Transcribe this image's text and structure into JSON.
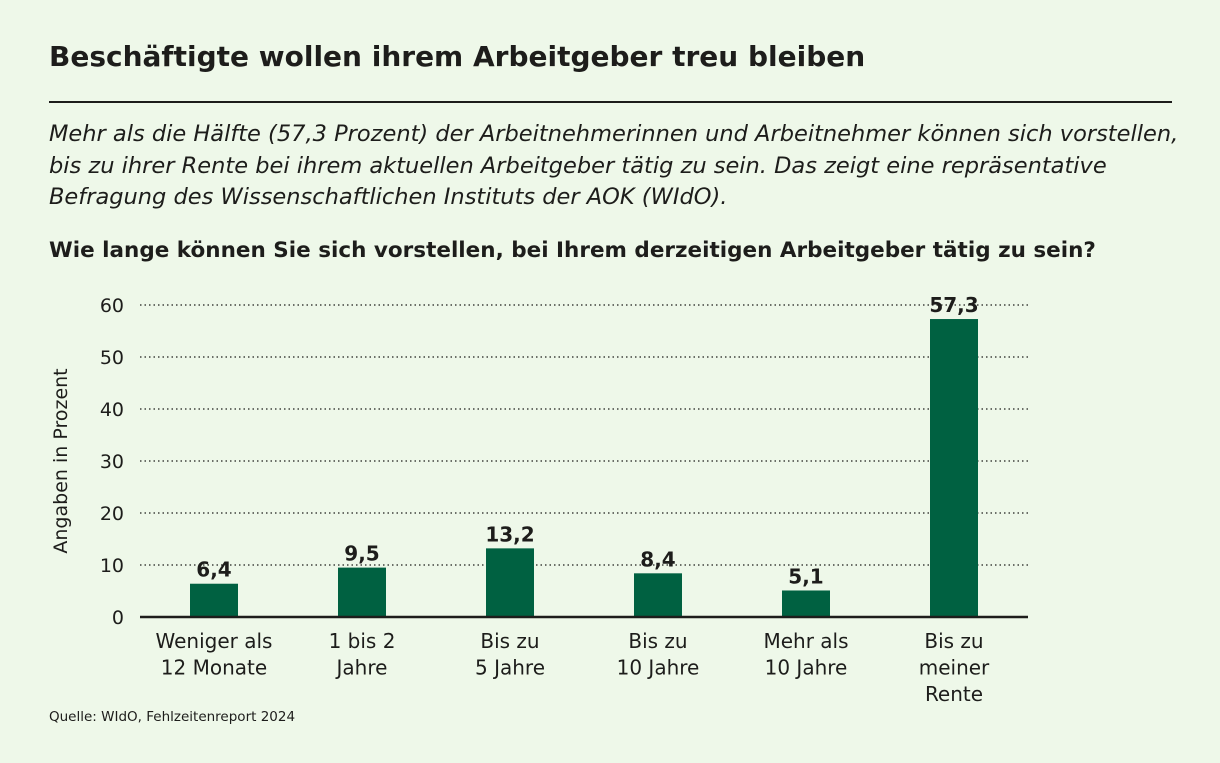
{
  "header": {
    "title": "Beschäftigte wollen ihrem Arbeitgeber treu bleiben",
    "subtitle": "Mehr als die Hälfte (57,3 Prozent) der Arbeitnehmerinnen und Arbeitnehmer können sich vorstellen, bis zu ihrer Rente bei ihrem aktuellen Arbeitgeber tätig zu sein. Das zeigt eine repräsentative Befragung des Wissenschaftlichen Instituts der AOK (WIdO).",
    "question": "Wie lange können Sie sich vorstellen, bei Ihrem derzeitigen Arbeitgeber tätig zu sein?"
  },
  "source": "Quelle: WIdO, Fehlzeitenreport 2024",
  "colors": {
    "bar": "#006141",
    "background": "#eef8e9",
    "text": "#1d1d1b"
  },
  "chart_data": {
    "type": "bar",
    "categories": [
      [
        "Weniger als",
        "12 Monate"
      ],
      [
        "1 bis 2",
        "Jahre"
      ],
      [
        "Bis zu",
        "5 Jahre"
      ],
      [
        "Bis zu",
        "10 Jahre"
      ],
      [
        "Mehr als",
        "10 Jahre"
      ],
      [
        "Bis zu",
        "meiner",
        "Rente"
      ]
    ],
    "values": [
      6.4,
      9.5,
      13.2,
      8.4,
      5.1,
      57.3
    ],
    "value_labels": [
      "6,4",
      "9,5",
      "13,2",
      "8,4",
      "5,1",
      "57,3"
    ],
    "ylabel": "Angaben in Prozent",
    "ylim": [
      0,
      60
    ],
    "yticks": [
      0,
      10,
      20,
      30,
      40,
      50,
      60
    ],
    "grid": "horizontal-dotted",
    "legend": "none"
  }
}
